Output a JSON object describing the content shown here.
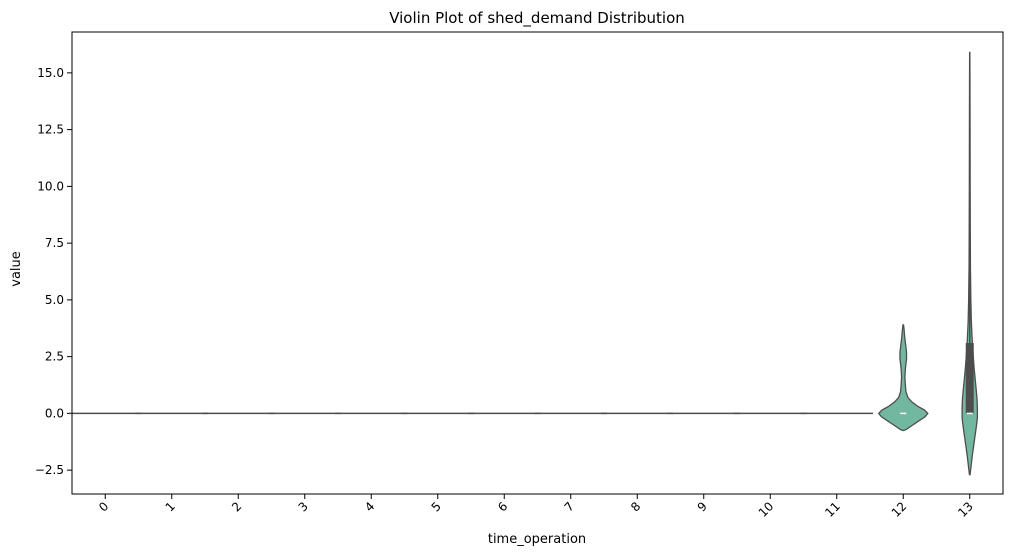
{
  "chart_data": {
    "type": "violin",
    "title": "Violin Plot of shed_demand Distribution",
    "xlabel": "time_operation",
    "ylabel": "value",
    "categories": [
      "0",
      "1",
      "2",
      "3",
      "4",
      "5",
      "6",
      "7",
      "8",
      "9",
      "10",
      "11",
      "12",
      "13"
    ],
    "yticks": [
      -2.5,
      0.0,
      2.5,
      5.0,
      7.5,
      10.0,
      12.5,
      15.0
    ],
    "ytick_labels": [
      "−2.5",
      "0.0",
      "2.5",
      "5.0",
      "7.5",
      "10.0",
      "12.5",
      "15.0"
    ],
    "ylim": [
      -3.55,
      16.8
    ],
    "colors": {
      "violin_fill": "#72b8a0",
      "outline": "#4d4d4d",
      "axis": "#000000"
    },
    "violins": [
      {
        "category": "0",
        "flat": true,
        "value": 0
      },
      {
        "category": "1",
        "flat": true,
        "value": 0
      },
      {
        "category": "2",
        "flat": true,
        "value": 0
      },
      {
        "category": "3",
        "flat": true,
        "value": 0
      },
      {
        "category": "4",
        "flat": true,
        "value": 0
      },
      {
        "category": "5",
        "flat": true,
        "value": 0
      },
      {
        "category": "6",
        "flat": true,
        "value": 0
      },
      {
        "category": "7",
        "flat": true,
        "value": 0
      },
      {
        "category": "8",
        "flat": true,
        "value": 0
      },
      {
        "category": "9",
        "flat": true,
        "value": 0
      },
      {
        "category": "10",
        "flat": true,
        "value": 0
      },
      {
        "category": "11",
        "flat": true,
        "value": 0
      },
      {
        "category": "12",
        "flat": false,
        "median": 0.0,
        "q1": 0.0,
        "q3": 0.0,
        "whisker_low": 0.0,
        "whisker_high": 0.0,
        "profile": [
          [
            -0.75,
            0.02
          ],
          [
            -0.7,
            0.12
          ],
          [
            -0.55,
            0.3
          ],
          [
            -0.35,
            0.55
          ],
          [
            -0.15,
            0.8
          ],
          [
            0.0,
            0.9
          ],
          [
            0.15,
            0.78
          ],
          [
            0.3,
            0.55
          ],
          [
            0.5,
            0.32
          ],
          [
            0.7,
            0.17
          ],
          [
            0.95,
            0.1
          ],
          [
            1.2,
            0.08
          ],
          [
            1.6,
            0.06
          ],
          [
            2.0,
            0.08
          ],
          [
            2.4,
            0.12
          ],
          [
            2.7,
            0.12
          ],
          [
            3.0,
            0.09
          ],
          [
            3.4,
            0.05
          ],
          [
            3.7,
            0.03
          ],
          [
            3.9,
            0.01
          ]
        ]
      },
      {
        "category": "13",
        "flat": false,
        "median": 0.0,
        "q1": 0.0,
        "q3": 3.1,
        "whisker_low": 0.0,
        "whisker_high": 15.9,
        "profile": [
          [
            -2.7,
            0.01
          ],
          [
            -2.3,
            0.05
          ],
          [
            -1.8,
            0.1
          ],
          [
            -1.2,
            0.17
          ],
          [
            -0.6,
            0.24
          ],
          [
            -0.2,
            0.28
          ],
          [
            0.2,
            0.28
          ],
          [
            0.6,
            0.27
          ],
          [
            1.0,
            0.24
          ],
          [
            1.5,
            0.2
          ],
          [
            2.0,
            0.16
          ],
          [
            2.5,
            0.13
          ],
          [
            3.0,
            0.1
          ],
          [
            4.0,
            0.06
          ],
          [
            5.0,
            0.04
          ],
          [
            6.5,
            0.025
          ],
          [
            8.0,
            0.02
          ],
          [
            10.0,
            0.015
          ],
          [
            12.5,
            0.012
          ],
          [
            14.5,
            0.008
          ],
          [
            15.9,
            0.004
          ]
        ]
      }
    ]
  }
}
